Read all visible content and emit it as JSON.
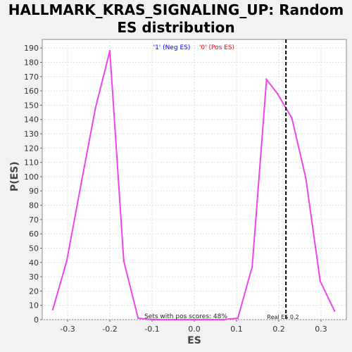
{
  "chart_data": {
    "type": "line",
    "title": "HALLMARK_KRAS_SIGNALING_UP: Random ES distribution",
    "xlabel": "ES",
    "ylabel": "P(ES)",
    "xlim": [
      -0.36,
      0.36
    ],
    "ylim": [
      0,
      196
    ],
    "xticks": [
      -0.3,
      -0.2,
      -0.1,
      0.0,
      0.1,
      0.2,
      0.3
    ],
    "xtick_labels": [
      "-0.3",
      "-0.2",
      "-0.1",
      "0.0",
      "0.1",
      "0.2",
      "0.3"
    ],
    "yticks": [
      0,
      10,
      20,
      30,
      40,
      50,
      60,
      70,
      80,
      90,
      100,
      110,
      120,
      130,
      140,
      150,
      160,
      170,
      180,
      190
    ],
    "grid": true,
    "legend_placement": "top-center",
    "legend": [
      {
        "label": "'1' (Neg ES)",
        "color": "#0000ff"
      },
      {
        "label": "'0' (Pos ES)",
        "color": "#ff0000"
      }
    ],
    "series": [
      {
        "color": "#ee44ee",
        "x": [
          -0.335,
          -0.302,
          -0.268,
          -0.234,
          -0.2,
          -0.167,
          -0.133,
          -0.1,
          -0.066,
          -0.032,
          0.002,
          0.036,
          0.069,
          0.103,
          0.137,
          0.171,
          0.197,
          0.231,
          0.264,
          0.298,
          0.332
        ],
        "y": [
          7,
          41,
          95,
          148,
          188,
          41,
          1,
          0,
          0,
          0,
          0,
          0,
          0,
          1,
          37,
          168,
          158,
          141,
          99,
          27,
          6
        ]
      }
    ],
    "vline": {
      "x": 0.217,
      "style": "dashed",
      "color": "#000000"
    },
    "annotations": [
      {
        "text": "Sets with pos scores: 48%",
        "x": -0.02
      },
      {
        "text": "Real ES 0.2",
        "x": 0.21
      }
    ]
  }
}
